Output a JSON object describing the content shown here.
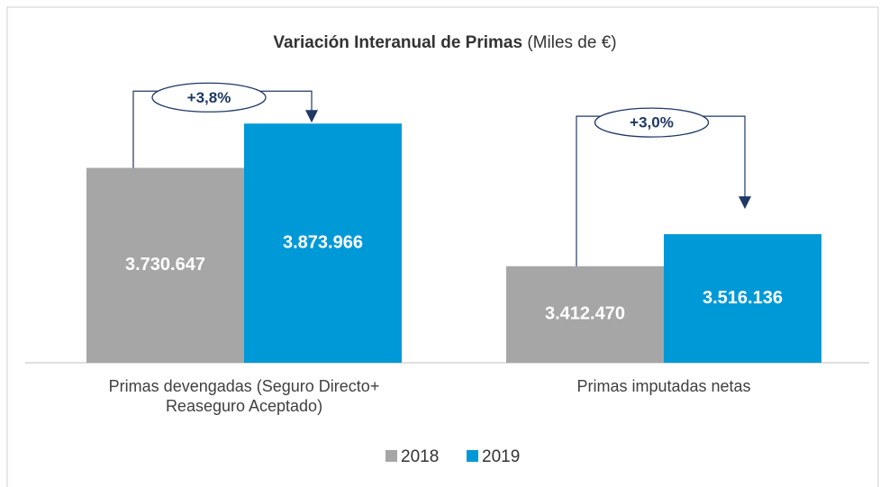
{
  "chart_data": {
    "type": "bar",
    "title": "Variación Interanual de Primas",
    "subtitle": "(Miles de €)",
    "categories": [
      "Primas devengadas (Seguro Directo+ Reaseguro Aceptado)",
      "Primas imputadas netas"
    ],
    "series": [
      {
        "name": "2018",
        "color": "#a6a6a6",
        "values": [
          3730647,
          3412470
        ],
        "value_labels": [
          "3.730.647",
          "3.412.470"
        ]
      },
      {
        "name": "2019",
        "color": "#0099d8",
        "values": [
          3873966,
          3516136
        ],
        "value_labels": [
          "3.873.966",
          "3.516.136"
        ]
      }
    ],
    "annotations": [
      "+3,8%",
      "+3,0%"
    ],
    "ylim": [
      3100000,
      4000000
    ],
    "legend": "bottom"
  }
}
